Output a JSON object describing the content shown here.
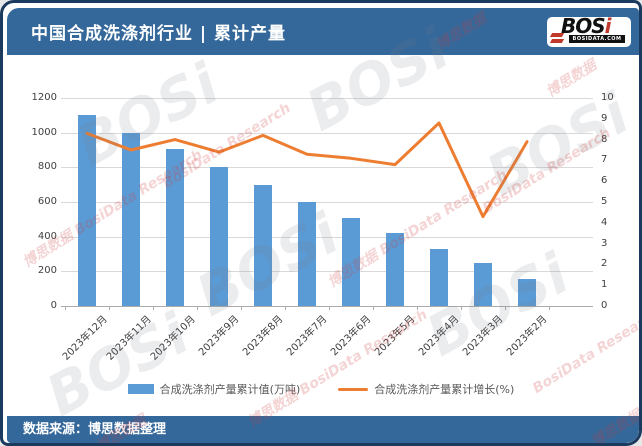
{
  "header": {
    "title": "中国合成洗涤剂行业 | 累计产量",
    "logo": {
      "name": "BOSi",
      "domain": "BOSIDATA.COM"
    }
  },
  "footer": {
    "source": "数据来源：博思数据整理"
  },
  "watermark": {
    "logo": "BOSi",
    "zh": "博思数据",
    "en": "BosiData Research"
  },
  "colors": {
    "frame": "#1c3a5e",
    "banner": "#35689a",
    "bar": "#5b9bd5",
    "line": "#ed7d31",
    "grid": "#d9d9d9",
    "axis_text": "#404040"
  },
  "chart_data": {
    "type": "bar",
    "subtype": "combo-bar-line-dual-axis",
    "categories": [
      "2023年12月",
      "2023年11月",
      "2023年10月",
      "2023年9月",
      "2023年8月",
      "2023年7月",
      "2023年6月",
      "2023年5月",
      "2023年4月",
      "2023年3月",
      "2023年2月"
    ],
    "series": [
      {
        "name": "合成洗涤剂产量累计值(万吨)",
        "type": "bar",
        "axis": "left",
        "color": "#5b9bd5",
        "values": [
          1100,
          1000,
          905,
          800,
          700,
          600,
          510,
          420,
          330,
          250,
          155
        ]
      },
      {
        "name": "合成洗涤剂产量累计增长(%)",
        "type": "line",
        "axis": "right",
        "color": "#ed7d31",
        "values": [
          8.3,
          7.5,
          8.0,
          7.4,
          8.2,
          7.3,
          7.1,
          6.8,
          8.8,
          4.3,
          7.9
        ]
      }
    ],
    "left_axis": {
      "min": 0,
      "max": 1200,
      "step": 200
    },
    "right_axis": {
      "min": 0,
      "max": 10,
      "step": 1
    },
    "grid": true,
    "legend_position": "bottom",
    "title": "中国合成洗涤剂行业 | 累计产量"
  }
}
